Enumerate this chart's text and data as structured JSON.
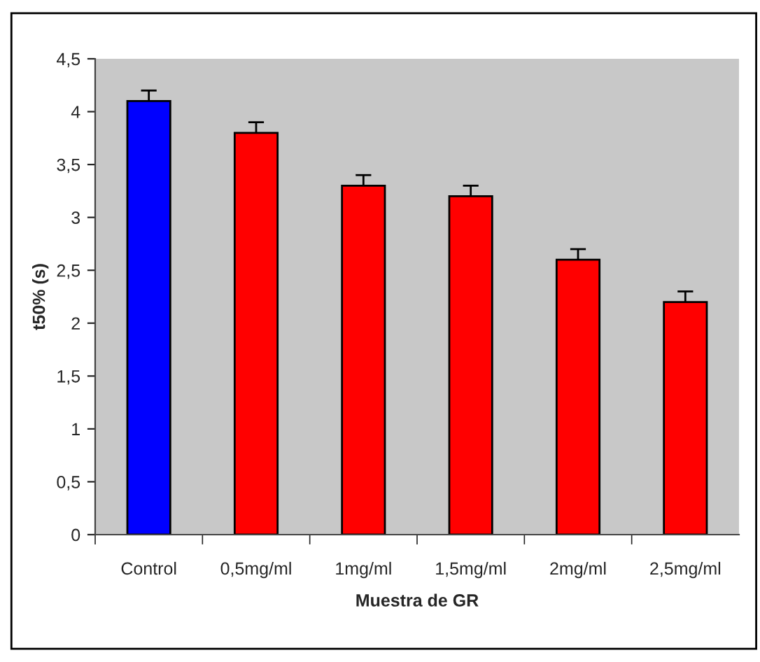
{
  "chart_data": {
    "type": "bar",
    "xlabel": "Muestra de GR",
    "ylabel": "t50% (s)",
    "categories": [
      "Control",
      "0,5mg/ml",
      "1mg/ml",
      "1,5mg/ml",
      "2mg/ml",
      "2,5mg/ml"
    ],
    "values": [
      4.1,
      3.8,
      3.3,
      3.2,
      2.6,
      2.2
    ],
    "errors": [
      0.1,
      0.1,
      0.1,
      0.1,
      0.1,
      0.1
    ],
    "colors": [
      "#0000ff",
      "#ff0000",
      "#ff0000",
      "#ff0000",
      "#ff0000",
      "#ff0000"
    ],
    "ylim": [
      0,
      4.5
    ],
    "yticks": [
      {
        "value": 0,
        "label": "0"
      },
      {
        "value": 0.5,
        "label": "0,5"
      },
      {
        "value": 1,
        "label": "1"
      },
      {
        "value": 1.5,
        "label": "1,5"
      },
      {
        "value": 2,
        "label": "2"
      },
      {
        "value": 2.5,
        "label": "2,5"
      },
      {
        "value": 3,
        "label": "3"
      },
      {
        "value": 3.5,
        "label": "3,5"
      },
      {
        "value": 4,
        "label": "4"
      },
      {
        "value": 4.5,
        "label": "4,5"
      }
    ],
    "legend": false
  }
}
